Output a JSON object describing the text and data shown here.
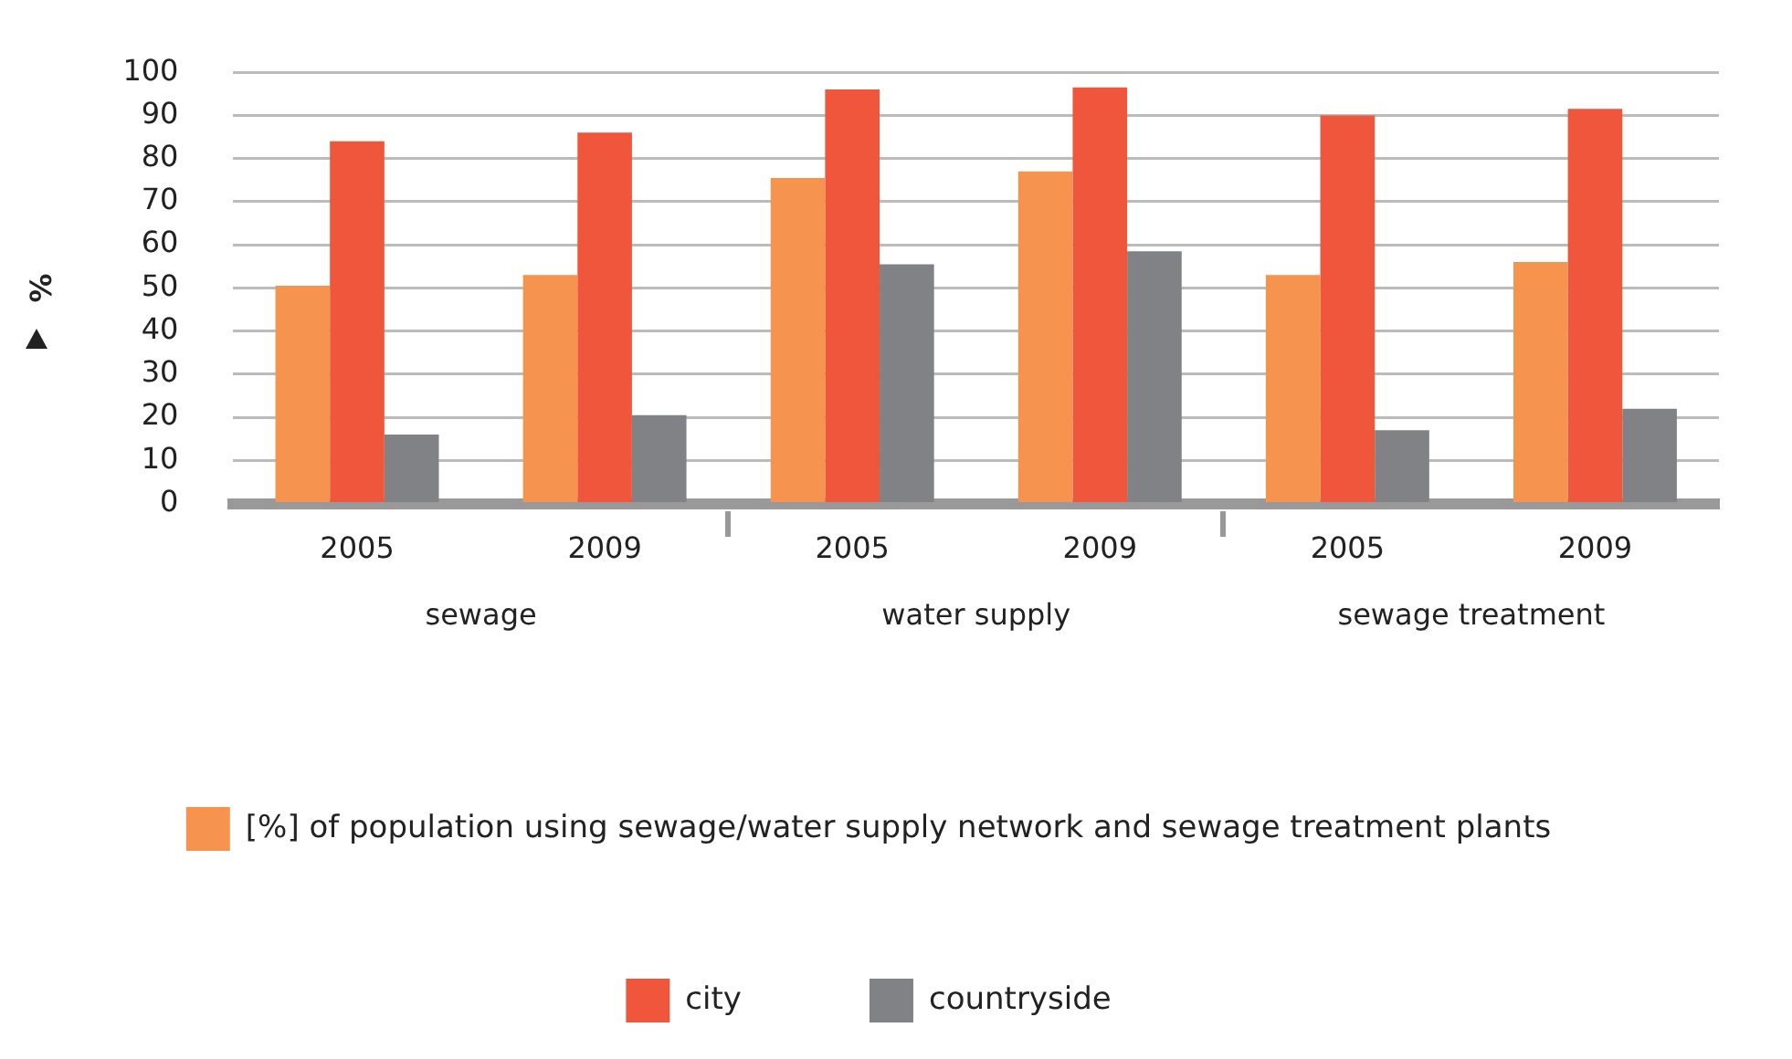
{
  "chart_data": {
    "type": "bar",
    "ylabel": "%",
    "categories": [
      "2005",
      "2009",
      "2005",
      "2009",
      "2005",
      "2009"
    ],
    "annotations": [
      "sewage",
      "water supply",
      "sewage treatment"
    ],
    "series": [
      {
        "name": "[%] of population using sewage/water supply network and sewage treatment plants",
        "color": "#f5934f",
        "values": [
          50.5,
          53,
          75.5,
          77,
          53,
          56
        ]
      },
      {
        "name": "city",
        "color": "#ef563b",
        "values": [
          84,
          86,
          96,
          96.5,
          90,
          91.5
        ]
      },
      {
        "name": "countryside",
        "color": "#818285",
        "values": [
          16,
          20.5,
          55.5,
          58.5,
          17,
          22
        ]
      }
    ],
    "ylim": [
      0,
      100
    ],
    "yticks": [
      0,
      10,
      20,
      30,
      40,
      50,
      60,
      70,
      80,
      90,
      100
    ],
    "grid": "y",
    "legend": "bottom"
  }
}
